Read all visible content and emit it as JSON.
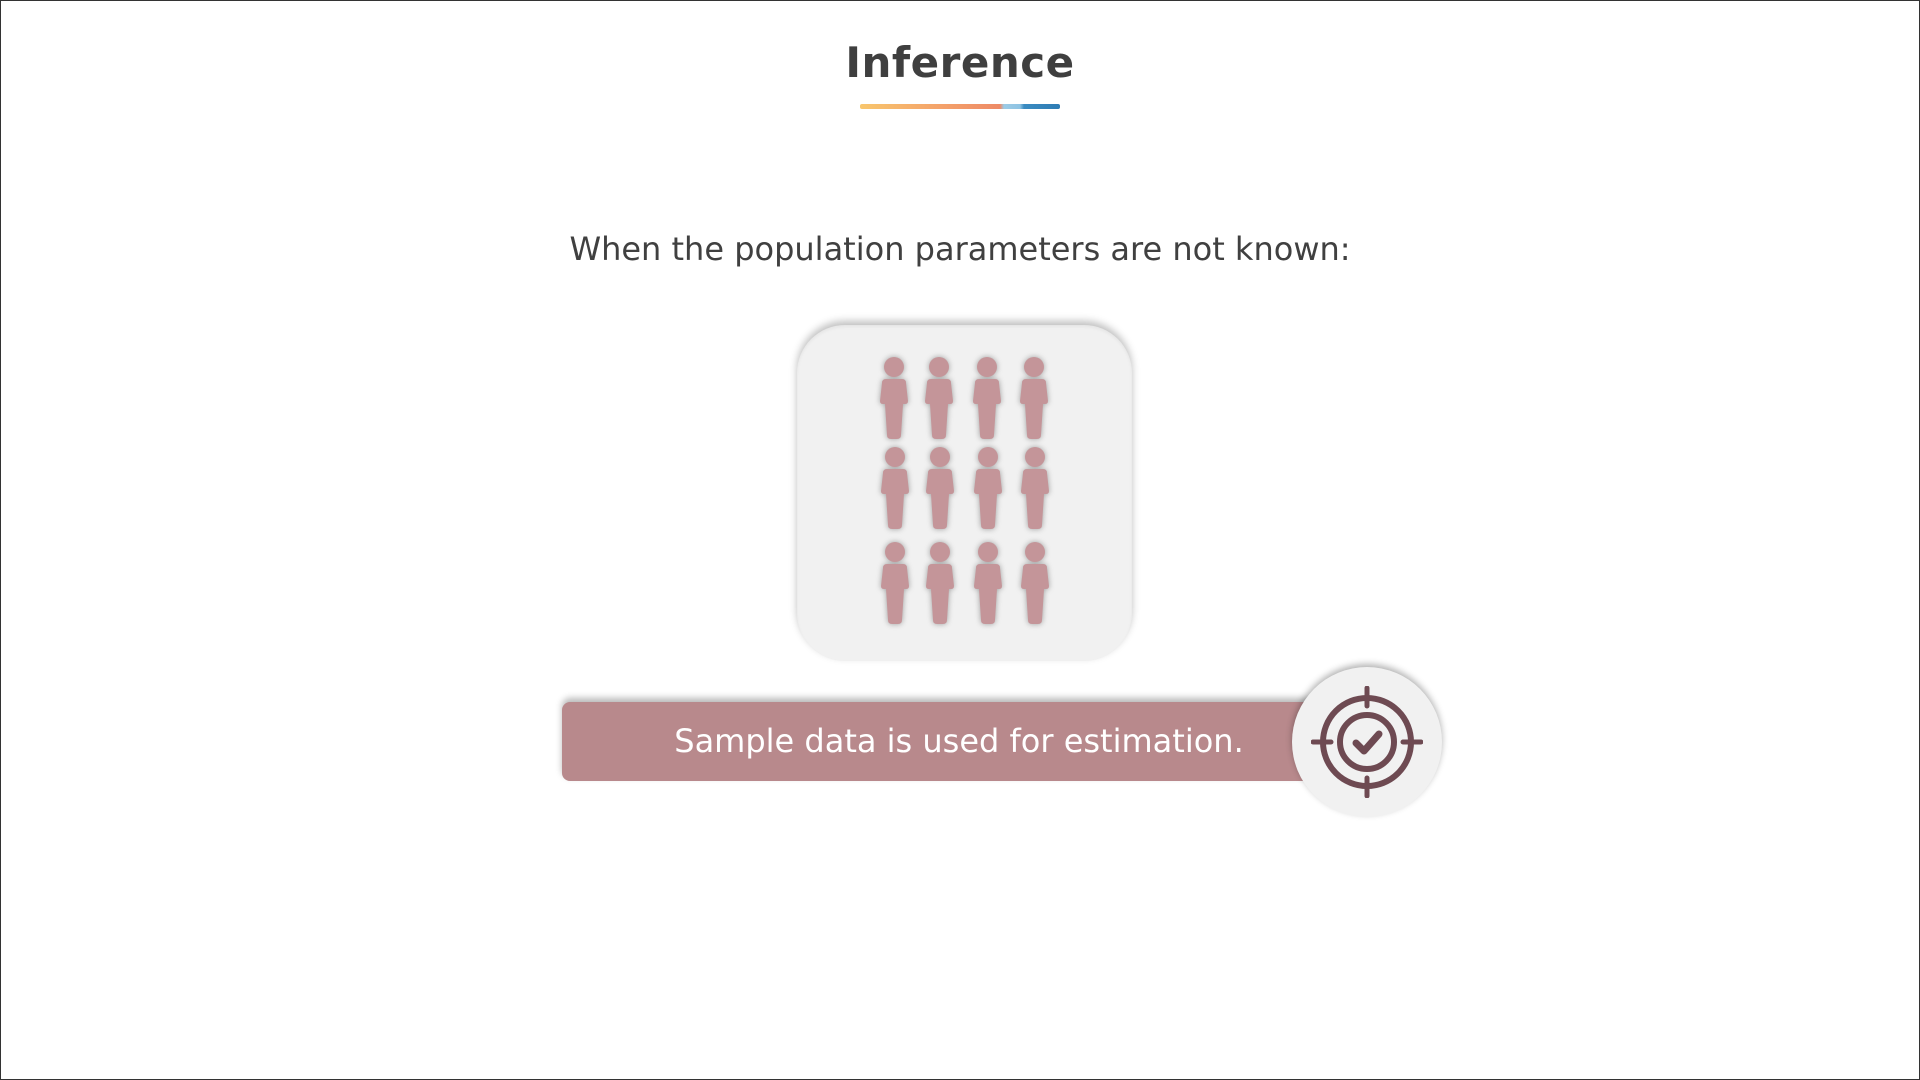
{
  "slide": {
    "title": "Inference",
    "subtitle": "When the population parameters are not known:",
    "banner_text": "Sample data is used for estimation."
  },
  "colors": {
    "title_text": "#3f3f3f",
    "person_fill": "#c49599",
    "banner_bg": "#b8898c",
    "icon_stroke": "#6e4a52"
  },
  "icons": {
    "population": "person-icon",
    "estimate": "target-check-icon"
  }
}
